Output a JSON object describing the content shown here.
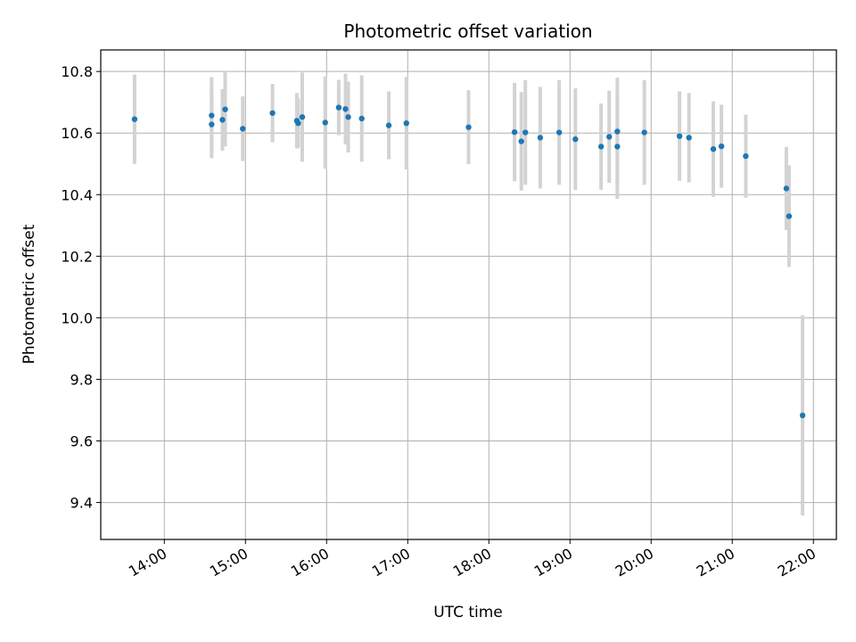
{
  "chart_data": {
    "type": "scatter",
    "title": "Photometric offset variation",
    "xlabel": "UTC time",
    "ylabel": "Photometric offset",
    "x_ticks": [
      "14:00",
      "15:00",
      "16:00",
      "17:00",
      "18:00",
      "19:00",
      "20:00",
      "21:00",
      "22:00"
    ],
    "y_ticks": [
      "9.4",
      "9.6",
      "9.8",
      "10.0",
      "10.2",
      "10.4",
      "10.6",
      "10.8"
    ],
    "xlim": [
      "13:13",
      "22:17"
    ],
    "ylim": [
      9.28,
      10.87
    ],
    "grid": true,
    "colors": {
      "point": "#1f77b4",
      "errorbar": "#d3d3d3",
      "grid": "#b0b0b0"
    },
    "points": [
      {
        "x": "13:38",
        "y": 10.645,
        "err": 0.145
      },
      {
        "x": "14:35",
        "y": 10.657,
        "err": 0.125
      },
      {
        "x": "14:35",
        "y": 10.628,
        "err": 0.11
      },
      {
        "x": "14:43",
        "y": 10.643,
        "err": 0.1
      },
      {
        "x": "14:45",
        "y": 10.677,
        "err": 0.12
      },
      {
        "x": "14:58",
        "y": 10.614,
        "err": 0.105
      },
      {
        "x": "15:20",
        "y": 10.665,
        "err": 0.095
      },
      {
        "x": "15:38",
        "y": 10.64,
        "err": 0.09
      },
      {
        "x": "15:39",
        "y": 10.632,
        "err": 0.08
      },
      {
        "x": "15:42",
        "y": 10.652,
        "err": 0.145
      },
      {
        "x": "15:59",
        "y": 10.634,
        "err": 0.15
      },
      {
        "x": "16:09",
        "y": 10.683,
        "err": 0.09
      },
      {
        "x": "16:14",
        "y": 10.678,
        "err": 0.115
      },
      {
        "x": "16:16",
        "y": 10.652,
        "err": 0.115
      },
      {
        "x": "16:26",
        "y": 10.647,
        "err": 0.14
      },
      {
        "x": "16:46",
        "y": 10.625,
        "err": 0.11
      },
      {
        "x": "16:59",
        "y": 10.632,
        "err": 0.15
      },
      {
        "x": "17:45",
        "y": 10.619,
        "err": 0.12
      },
      {
        "x": "18:19",
        "y": 10.603,
        "err": 0.16
      },
      {
        "x": "18:24",
        "y": 10.573,
        "err": 0.16
      },
      {
        "x": "18:27",
        "y": 10.602,
        "err": 0.17
      },
      {
        "x": "18:38",
        "y": 10.585,
        "err": 0.165
      },
      {
        "x": "18:52",
        "y": 10.602,
        "err": 0.17
      },
      {
        "x": "19:04",
        "y": 10.58,
        "err": 0.165
      },
      {
        "x": "19:23",
        "y": 10.556,
        "err": 0.14
      },
      {
        "x": "19:29",
        "y": 10.588,
        "err": 0.15
      },
      {
        "x": "19:35",
        "y": 10.605,
        "err": 0.175
      },
      {
        "x": "19:35",
        "y": 10.556,
        "err": 0.17
      },
      {
        "x": "19:55",
        "y": 10.602,
        "err": 0.17
      },
      {
        "x": "20:21",
        "y": 10.59,
        "err": 0.145
      },
      {
        "x": "20:28",
        "y": 10.585,
        "err": 0.145
      },
      {
        "x": "20:46",
        "y": 10.548,
        "err": 0.155
      },
      {
        "x": "20:52",
        "y": 10.557,
        "err": 0.135
      },
      {
        "x": "21:10",
        "y": 10.525,
        "err": 0.135
      },
      {
        "x": "21:40",
        "y": 10.42,
        "err": 0.135
      },
      {
        "x": "21:42",
        "y": 10.33,
        "err": 0.165
      },
      {
        "x": "21:52",
        "y": 9.683,
        "err": 0.325
      }
    ]
  }
}
